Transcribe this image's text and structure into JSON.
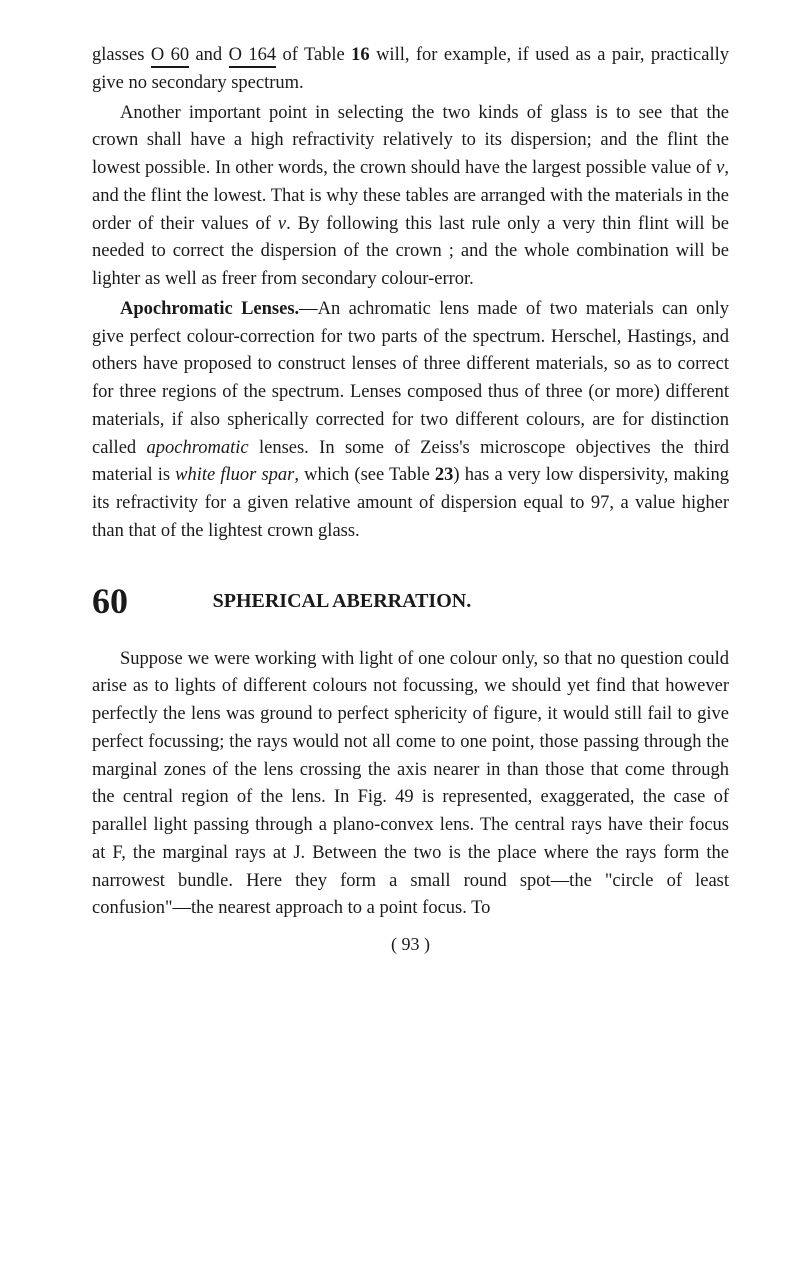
{
  "colors": {
    "background": "#ffffff",
    "text": "#1a1a1a",
    "underline": "#1a1a1a"
  },
  "typography": {
    "body_font_family": "Georgia, 'Times New Roman', serif",
    "body_font_size": 18.5,
    "body_line_height": 1.5,
    "section_num_size": 36,
    "section_title_size": 20
  },
  "para1_part1": "glasses ",
  "para1_val1": "O 60",
  "para1_part2": " and ",
  "para1_val2": "O 164",
  "para1_part3": " of Table ",
  "para1_table": "16",
  "para1_part4": " will, for example, if used as a pair, practically give no secondary spectrum.",
  "para2": "Another important point in selecting the two kinds of glass is to see that the crown shall have a high refractivity relatively to its dispersion; and the flint the lowest possible. In other words, the crown should have the largest possible value of ",
  "para2_var1": "v",
  "para2_part2": ", and the flint the lowest. That is why these tables are arranged with the materials in the order of their values of ",
  "para2_var2": "v",
  "para2_part3": ". By following this last rule only a very thin flint will be needed to correct the dispersion of the crown ; and the whole combination will be lighter as well as freer from secondary colour-error.",
  "para3_head": "Apochromatic Lenses.",
  "para3_part1": "—An achromatic lens made of two materials can only give perfect colour-correction for two parts of the spectrum. Herschel, Hastings, and others have proposed to construct lenses of three different materials, so as to correct for three regions of the spectrum. Lenses composed thus of three (or more) different materials, if also spherically corrected for two different colours, are for distinction called ",
  "para3_ital1": "apochromatic",
  "para3_part2": " lenses. In some of Zeiss's microscope objectives the third material is ",
  "para3_ital2": "white fluor spar",
  "para3_part3": ", which (see Table ",
  "para3_table": "23",
  "para3_part4": ") has a very low dispersivity, making its refractivity for a given relative amount of dispersion equal to 97, a value higher than that of the lightest crown glass.",
  "section_num": "60",
  "section_title": "SPHERICAL ABERRATION.",
  "para4": "Suppose we were working with light of one colour only, so that no question could arise as to lights of different colours not focussing, we should yet find that however perfectly the lens was ground to perfect sphericity of figure, it would still fail to give perfect focussing; the rays would not all come to one point, those passing through the marginal zones of the lens crossing the axis nearer in than those that come through the central region of the lens. In Fig. 49 is represented, exaggerated, the case of parallel light passing through a plano-convex lens. The central rays have their focus at F, the marginal rays at J. Between the two is the place where the rays form the narrowest bundle. Here they form a small round spot—the \"circle of least confusion\"—the nearest approach to a point focus. To",
  "page_number": "( 93 )"
}
